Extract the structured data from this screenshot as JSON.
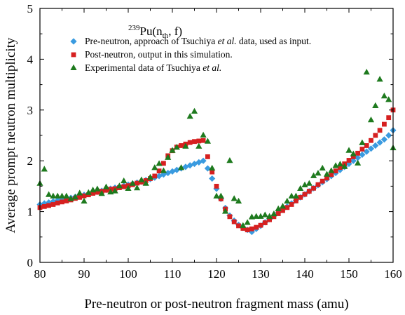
{
  "chart_data": {
    "type": "scatter",
    "title_parts": {
      "sup": "239",
      "main": "Pu(n",
      "sub": "th",
      "tail": ", f)"
    },
    "xlabel": "Pre-neutron or post-neutron fragment mass (amu)",
    "ylabel": "Average prompt neutron multiplicity",
    "xlim": [
      80,
      160
    ],
    "ylim": [
      0,
      5
    ],
    "xticks": [
      "80",
      "90",
      "100",
      "110",
      "120",
      "130",
      "140",
      "150",
      "160"
    ],
    "yticks": [
      "0",
      "1",
      "2",
      "3",
      "4",
      "5"
    ],
    "grid": false,
    "legend_position": "top-right",
    "series": [
      {
        "name": "Pre-neutron, approach of Tsuchiya et al. data, used as input.",
        "name_parts": [
          "Pre-neutron, approach of Tsuchiya ",
          "et al.",
          " data, used as input."
        ],
        "marker": "diamond",
        "color": "#3a9be0",
        "points": [
          [
            80,
            1.14
          ],
          [
            81,
            1.16
          ],
          [
            82,
            1.18
          ],
          [
            83,
            1.2
          ],
          [
            84,
            1.22
          ],
          [
            85,
            1.24
          ],
          [
            86,
            1.25
          ],
          [
            87,
            1.27
          ],
          [
            88,
            1.29
          ],
          [
            89,
            1.31
          ],
          [
            90,
            1.33
          ],
          [
            91,
            1.35
          ],
          [
            92,
            1.37
          ],
          [
            93,
            1.39
          ],
          [
            94,
            1.41
          ],
          [
            95,
            1.43
          ],
          [
            96,
            1.45
          ],
          [
            97,
            1.47
          ],
          [
            98,
            1.49
          ],
          [
            99,
            1.51
          ],
          [
            100,
            1.53
          ],
          [
            101,
            1.55
          ],
          [
            102,
            1.57
          ],
          [
            103,
            1.59
          ],
          [
            104,
            1.62
          ],
          [
            105,
            1.64
          ],
          [
            106,
            1.67
          ],
          [
            107,
            1.7
          ],
          [
            108,
            1.73
          ],
          [
            109,
            1.76
          ],
          [
            110,
            1.79
          ],
          [
            111,
            1.82
          ],
          [
            112,
            1.85
          ],
          [
            113,
            1.88
          ],
          [
            114,
            1.91
          ],
          [
            115,
            1.94
          ],
          [
            116,
            1.97
          ],
          [
            117,
            2.0
          ],
          [
            118,
            1.85
          ],
          [
            119,
            1.65
          ],
          [
            120,
            1.45
          ],
          [
            121,
            1.25
          ],
          [
            122,
            1.07
          ],
          [
            123,
            0.92
          ],
          [
            124,
            0.82
          ],
          [
            125,
            0.74
          ],
          [
            126,
            0.68
          ],
          [
            127,
            0.64
          ],
          [
            128,
            0.6
          ],
          [
            129,
            0.66
          ],
          [
            130,
            0.72
          ],
          [
            131,
            0.79
          ],
          [
            132,
            0.85
          ],
          [
            133,
            0.92
          ],
          [
            134,
            0.98
          ],
          [
            135,
            1.04
          ],
          [
            136,
            1.1
          ],
          [
            137,
            1.16
          ],
          [
            138,
            1.22
          ],
          [
            139,
            1.28
          ],
          [
            140,
            1.34
          ],
          [
            141,
            1.4
          ],
          [
            142,
            1.46
          ],
          [
            143,
            1.52
          ],
          [
            144,
            1.58
          ],
          [
            145,
            1.64
          ],
          [
            146,
            1.7
          ],
          [
            147,
            1.76
          ],
          [
            148,
            1.82
          ],
          [
            149,
            1.88
          ],
          [
            150,
            1.94
          ],
          [
            151,
            2.0
          ],
          [
            152,
            2.06
          ],
          [
            153,
            2.12
          ],
          [
            154,
            2.18
          ],
          [
            155,
            2.24
          ],
          [
            156,
            2.3
          ],
          [
            157,
            2.36
          ],
          [
            158,
            2.42
          ],
          [
            159,
            2.5
          ],
          [
            160,
            2.6
          ]
        ]
      },
      {
        "name": "Post-neutron, output in this simulation.",
        "name_parts": [
          "Post-neutron, output in this simulation."
        ],
        "marker": "square",
        "color": "#d62020",
        "points": [
          [
            80,
            1.08
          ],
          [
            81,
            1.1
          ],
          [
            82,
            1.12
          ],
          [
            83,
            1.14
          ],
          [
            84,
            1.17
          ],
          [
            85,
            1.19
          ],
          [
            86,
            1.21
          ],
          [
            87,
            1.23
          ],
          [
            88,
            1.26
          ],
          [
            89,
            1.28
          ],
          [
            90,
            1.31
          ],
          [
            91,
            1.33
          ],
          [
            92,
            1.36
          ],
          [
            93,
            1.38
          ],
          [
            94,
            1.4
          ],
          [
            95,
            1.42
          ],
          [
            96,
            1.44
          ],
          [
            97,
            1.45
          ],
          [
            98,
            1.47
          ],
          [
            99,
            1.49
          ],
          [
            100,
            1.51
          ],
          [
            101,
            1.53
          ],
          [
            102,
            1.56
          ],
          [
            103,
            1.58
          ],
          [
            104,
            1.61
          ],
          [
            105,
            1.65
          ],
          [
            106,
            1.7
          ],
          [
            107,
            1.8
          ],
          [
            108,
            1.95
          ],
          [
            109,
            2.1
          ],
          [
            110,
            2.2
          ],
          [
            111,
            2.27
          ],
          [
            112,
            2.3
          ],
          [
            113,
            2.33
          ],
          [
            114,
            2.36
          ],
          [
            115,
            2.38
          ],
          [
            116,
            2.39
          ],
          [
            117,
            2.4
          ],
          [
            118,
            2.08
          ],
          [
            119,
            1.78
          ],
          [
            120,
            1.5
          ],
          [
            121,
            1.25
          ],
          [
            122,
            1.05
          ],
          [
            123,
            0.9
          ],
          [
            124,
            0.8
          ],
          [
            125,
            0.72
          ],
          [
            126,
            0.67
          ],
          [
            127,
            0.64
          ],
          [
            128,
            0.66
          ],
          [
            129,
            0.69
          ],
          [
            130,
            0.73
          ],
          [
            131,
            0.78
          ],
          [
            132,
            0.84
          ],
          [
            133,
            0.9
          ],
          [
            134,
            0.96
          ],
          [
            135,
            1.02
          ],
          [
            136,
            1.08
          ],
          [
            137,
            1.14
          ],
          [
            138,
            1.21
          ],
          [
            139,
            1.28
          ],
          [
            140,
            1.34
          ],
          [
            141,
            1.4
          ],
          [
            142,
            1.46
          ],
          [
            143,
            1.53
          ],
          [
            144,
            1.6
          ],
          [
            145,
            1.66
          ],
          [
            146,
            1.73
          ],
          [
            147,
            1.8
          ],
          [
            148,
            1.87
          ],
          [
            149,
            1.94
          ],
          [
            150,
            2.01
          ],
          [
            151,
            2.08
          ],
          [
            152,
            2.15
          ],
          [
            153,
            2.23
          ],
          [
            154,
            2.3
          ],
          [
            155,
            2.4
          ],
          [
            156,
            2.5
          ],
          [
            157,
            2.6
          ],
          [
            158,
            2.72
          ],
          [
            159,
            2.85
          ],
          [
            160,
            3.0
          ]
        ]
      },
      {
        "name": "Experimental data of Tsuchiya et al.",
        "name_parts": [
          "Experimental data of Tsuchiya ",
          "et al.",
          ""
        ],
        "marker": "triangle",
        "color": "#1e7a1e",
        "points": [
          [
            80,
            1.55
          ],
          [
            81,
            1.83
          ],
          [
            82,
            1.33
          ],
          [
            83,
            1.3
          ],
          [
            84,
            1.3
          ],
          [
            85,
            1.3
          ],
          [
            86,
            1.3
          ],
          [
            87,
            1.25
          ],
          [
            88,
            1.28
          ],
          [
            89,
            1.36
          ],
          [
            90,
            1.2
          ],
          [
            91,
            1.37
          ],
          [
            92,
            1.42
          ],
          [
            93,
            1.44
          ],
          [
            94,
            1.35
          ],
          [
            95,
            1.48
          ],
          [
            96,
            1.38
          ],
          [
            97,
            1.4
          ],
          [
            98,
            1.5
          ],
          [
            99,
            1.6
          ],
          [
            100,
            1.45
          ],
          [
            101,
            1.55
          ],
          [
            102,
            1.46
          ],
          [
            103,
            1.62
          ],
          [
            104,
            1.55
          ],
          [
            105,
            1.67
          ],
          [
            106,
            1.86
          ],
          [
            107,
            1.94
          ],
          [
            108,
            1.8
          ],
          [
            109,
            2.06
          ],
          [
            110,
            2.2
          ],
          [
            111,
            2.26
          ],
          [
            112,
            1.86
          ],
          [
            113,
            2.28
          ],
          [
            114,
            2.87
          ],
          [
            115,
            2.97
          ],
          [
            116,
            2.28
          ],
          [
            117,
            2.5
          ],
          [
            118,
            2.38
          ],
          [
            119,
            1.85
          ],
          [
            120,
            1.3
          ],
          [
            121,
            1.3
          ],
          [
            122,
            1.0
          ],
          [
            123,
            2.0
          ],
          [
            124,
            1.25
          ],
          [
            125,
            1.2
          ],
          [
            126,
            0.72
          ],
          [
            127,
            0.78
          ],
          [
            128,
            0.89
          ],
          [
            129,
            0.9
          ],
          [
            130,
            0.9
          ],
          [
            131,
            0.93
          ],
          [
            132,
            0.9
          ],
          [
            133,
            0.95
          ],
          [
            134,
            1.05
          ],
          [
            135,
            1.1
          ],
          [
            136,
            1.2
          ],
          [
            137,
            1.3
          ],
          [
            138,
            1.3
          ],
          [
            139,
            1.45
          ],
          [
            140,
            1.52
          ],
          [
            141,
            1.55
          ],
          [
            142,
            1.7
          ],
          [
            143,
            1.75
          ],
          [
            144,
            1.85
          ],
          [
            145,
            1.73
          ],
          [
            146,
            1.8
          ],
          [
            147,
            1.9
          ],
          [
            148,
            1.93
          ],
          [
            149,
            1.88
          ],
          [
            150,
            2.2
          ],
          [
            151,
            2.13
          ],
          [
            152,
            1.95
          ],
          [
            153,
            2.35
          ],
          [
            154,
            3.74
          ],
          [
            155,
            2.8
          ],
          [
            156,
            3.08
          ],
          [
            157,
            3.6
          ],
          [
            158,
            3.27
          ],
          [
            159,
            3.2
          ],
          [
            160,
            2.25
          ]
        ]
      }
    ]
  }
}
